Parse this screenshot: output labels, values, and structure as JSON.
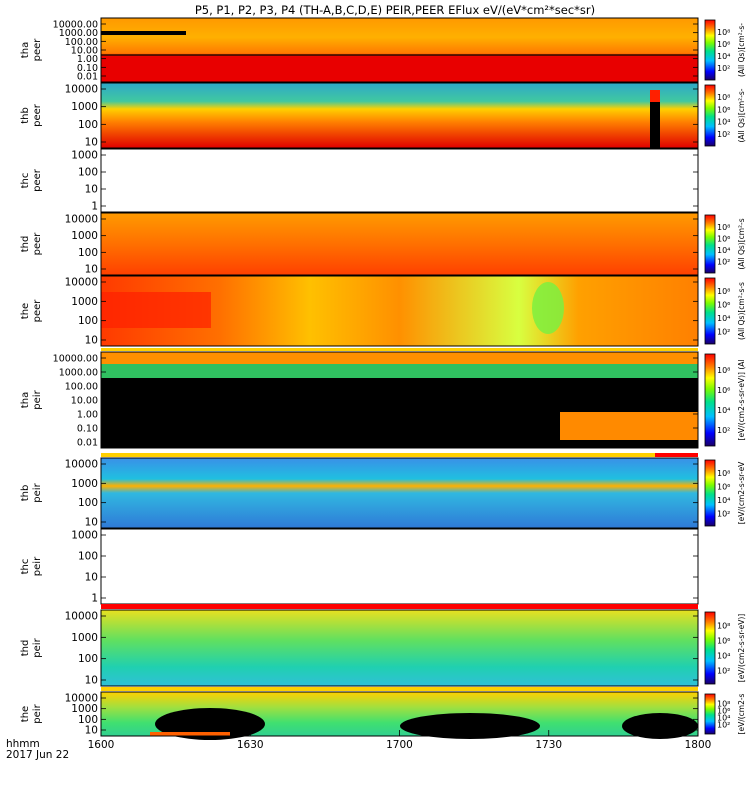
{
  "chart_data": {
    "type": "heatmap",
    "title": "P5, P1, P2, P3, P4 (TH-A,B,C,D,E) PEIR,PEER EFlux eV/(eV*cm²*sec*sr)",
    "time_axis": {
      "ticks": [
        "1600",
        "1630",
        "1700",
        "1730",
        "1800"
      ],
      "corner_label_1": "hhmm",
      "corner_label_2": "2017 Jun 22"
    },
    "colorbar": {
      "ticks": [
        "10²",
        "10⁴",
        "10⁶",
        "10⁸"
      ],
      "label_peer": "(All Qs)[cm²-s-sr-eV] eV/(cm2-s-sr-eV) (All Qs)",
      "label_peir": "[eV/(cm2-s-sr-eV)] (All Qs) eV/(cm2-s-sr-eV)"
    },
    "panels": [
      {
        "probe": "tha",
        "species": "peer",
        "yticks": [
          "10000.00",
          "1000.00",
          "100.00",
          "10.00",
          "1.00",
          "0.10",
          "0.01"
        ],
        "colorbar": true
      },
      {
        "probe": "thb",
        "species": "peer",
        "yticks": [
          "10000",
          "1000",
          "100",
          "10"
        ],
        "colorbar": true
      },
      {
        "probe": "thc",
        "species": "peer",
        "yticks": [
          "1000",
          "100",
          "10",
          "1"
        ],
        "colorbar": false
      },
      {
        "probe": "thd",
        "species": "peer",
        "yticks": [
          "10000",
          "1000",
          "100",
          "10"
        ],
        "colorbar": true
      },
      {
        "probe": "the",
        "species": "peer",
        "yticks": [
          "10000",
          "1000",
          "100",
          "10"
        ],
        "colorbar": true
      },
      {
        "probe": "tha",
        "species": "peir",
        "yticks": [
          "10000.00",
          "1000.00",
          "100.00",
          "10.00",
          "1.00",
          "0.10",
          "0.01"
        ],
        "colorbar": true
      },
      {
        "probe": "thb",
        "species": "peir",
        "yticks": [
          "10000",
          "1000",
          "100",
          "10"
        ],
        "colorbar": true
      },
      {
        "probe": "thc",
        "species": "peir",
        "yticks": [
          "1000",
          "100",
          "10",
          "1"
        ],
        "colorbar": false
      },
      {
        "probe": "thd",
        "species": "peir",
        "yticks": [
          "10000",
          "1000",
          "100",
          "10"
        ],
        "colorbar": true
      },
      {
        "probe": "the",
        "species": "peir",
        "yticks": [
          "10000",
          "1000",
          "100",
          "10"
        ],
        "colorbar": true
      }
    ]
  }
}
